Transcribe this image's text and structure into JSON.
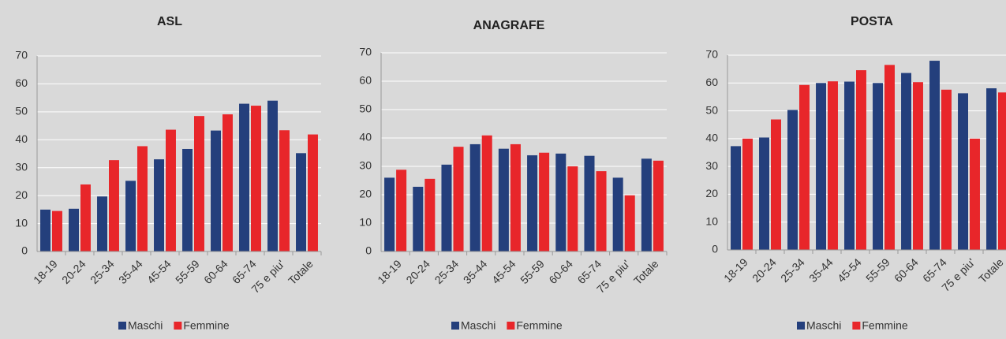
{
  "chart_data": [
    {
      "type": "bar",
      "title": "ASL",
      "categories": [
        "18-19",
        "20-24",
        "25-34",
        "35-44",
        "45-54",
        "55-59",
        "60-64",
        "65-74",
        "75 e piu'",
        "Totale"
      ],
      "series": [
        {
          "name": "Maschi",
          "color": "#243f7c",
          "values": [
            15,
            15.3,
            19.7,
            25.3,
            33,
            36.7,
            43.3,
            52.9,
            54,
            35.2
          ]
        },
        {
          "name": "Femmine",
          "color": "#e8262a",
          "values": [
            14.5,
            24,
            32.7,
            37.7,
            43.6,
            48.5,
            49.1,
            52.2,
            43.4,
            41.9
          ]
        }
      ],
      "ylim": [
        0,
        70
      ],
      "yticks": [
        0,
        10,
        20,
        30,
        40,
        50,
        60,
        70
      ],
      "grid": true,
      "legend": "bottom"
    },
    {
      "type": "bar",
      "title": "ANAGRAFE",
      "categories": [
        "18-19",
        "20-24",
        "25-34",
        "35-44",
        "45-54",
        "55-59",
        "60-64",
        "65-74",
        "75 e piu'",
        "Totale"
      ],
      "series": [
        {
          "name": "Maschi",
          "color": "#243f7c",
          "values": [
            26,
            22.8,
            30.6,
            37.8,
            36.2,
            33.9,
            34.5,
            33.7,
            26,
            32.7
          ]
        },
        {
          "name": "Femmine",
          "color": "#e8262a",
          "values": [
            28.8,
            25.6,
            36.9,
            40.9,
            37.8,
            34.8,
            30,
            28.3,
            19.8,
            32
          ]
        }
      ],
      "ylim": [
        0,
        70
      ],
      "yticks": [
        0,
        10,
        20,
        30,
        40,
        50,
        60,
        70
      ],
      "grid": true,
      "legend": "bottom"
    },
    {
      "type": "bar",
      "title": "POSTA",
      "categories": [
        "18-19",
        "20-24",
        "25-34",
        "35-44",
        "45-54",
        "55-59",
        "60-64",
        "65-74",
        "75 e piu'",
        "Totale"
      ],
      "series": [
        {
          "name": "Maschi",
          "color": "#243f7c",
          "values": [
            37.3,
            40.4,
            50.3,
            60,
            60.5,
            60,
            63.6,
            68,
            56.3,
            58.1
          ]
        },
        {
          "name": "Femmine",
          "color": "#e8262a",
          "values": [
            40,
            46.9,
            59.3,
            60.6,
            64.6,
            66.5,
            60.3,
            57.6,
            40,
            56.6
          ]
        }
      ],
      "ylim": [
        0,
        70
      ],
      "yticks": [
        0,
        10,
        20,
        30,
        40,
        50,
        60,
        70
      ],
      "grid": true,
      "legend": "bottom"
    }
  ]
}
